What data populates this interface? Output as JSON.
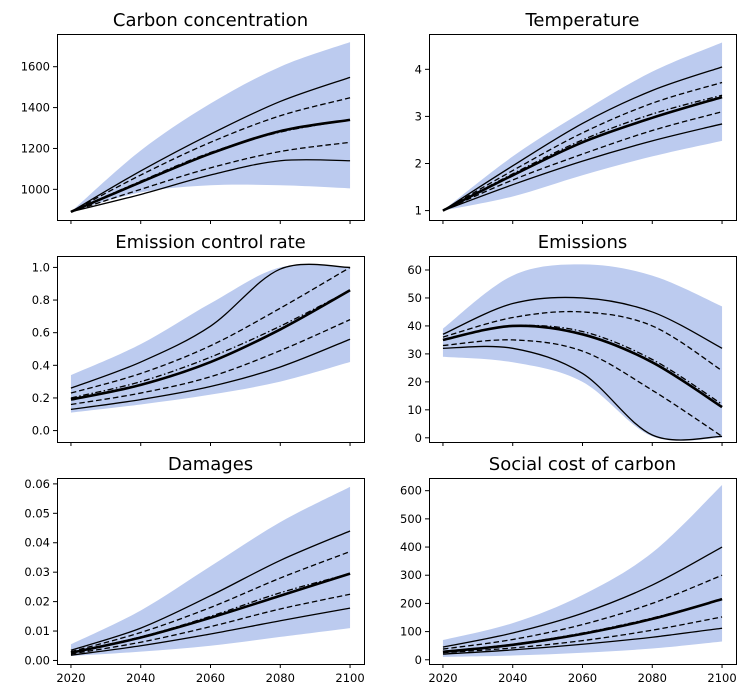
{
  "chart_data": [
    {
      "type": "line",
      "title": "Carbon concentration",
      "x": [
        2020,
        2040,
        2060,
        2080,
        2100
      ],
      "xticks": [
        2020,
        2040,
        2060,
        2080,
        2100
      ],
      "show_xticklabels": false,
      "ylim": [
        850,
        1760
      ],
      "yticks": [
        1000,
        1200,
        1400,
        1600
      ],
      "ytick_labels": [
        "1000",
        "1200",
        "1400",
        "1600"
      ],
      "band": {
        "lower": [
          890,
          985,
          1020,
          1020,
          1005
        ],
        "upper": [
          890,
          1190,
          1420,
          1600,
          1720
        ]
      },
      "series": [
        {
          "style": "solid",
          "width": 1.3,
          "values": [
            890,
            1090,
            1270,
            1430,
            1548
          ]
        },
        {
          "style": "dashed",
          "width": 1.3,
          "values": [
            890,
            1070,
            1230,
            1360,
            1448
          ]
        },
        {
          "style": "dashdot",
          "width": 1.3,
          "values": [
            890,
            1040,
            1180,
            1280,
            1340
          ]
        },
        {
          "style": "solid",
          "width": 2.6,
          "values": [
            890,
            1035,
            1175,
            1285,
            1340
          ]
        },
        {
          "style": "dashed",
          "width": 1.3,
          "values": [
            890,
            1000,
            1105,
            1185,
            1230
          ]
        },
        {
          "style": "solid",
          "width": 1.3,
          "values": [
            890,
            975,
            1070,
            1140,
            1140
          ]
        }
      ]
    },
    {
      "type": "line",
      "title": "Temperature",
      "x": [
        2020,
        2040,
        2060,
        2080,
        2100
      ],
      "xticks": [
        2020,
        2040,
        2060,
        2080,
        2100
      ],
      "show_xticklabels": false,
      "ylim": [
        0.8,
        4.75
      ],
      "yticks": [
        1,
        2,
        3,
        4
      ],
      "ytick_labels": [
        "1",
        "2",
        "3",
        "4"
      ],
      "band": {
        "lower": [
          1.0,
          1.3,
          1.75,
          2.15,
          2.48
        ],
        "upper": [
          1.0,
          2.15,
          3.1,
          3.95,
          4.57
        ]
      },
      "series": [
        {
          "style": "solid",
          "width": 1.3,
          "values": [
            1.0,
            1.95,
            2.85,
            3.55,
            4.05
          ]
        },
        {
          "style": "dashed",
          "width": 1.3,
          "values": [
            1.0,
            1.85,
            2.65,
            3.28,
            3.72
          ]
        },
        {
          "style": "dashdot",
          "width": 1.3,
          "values": [
            1.0,
            1.78,
            2.5,
            3.05,
            3.45
          ]
        },
        {
          "style": "solid",
          "width": 2.6,
          "values": [
            1.0,
            1.75,
            2.45,
            2.97,
            3.41
          ]
        },
        {
          "style": "dashed",
          "width": 1.3,
          "values": [
            1.0,
            1.65,
            2.2,
            2.7,
            3.1
          ]
        },
        {
          "style": "solid",
          "width": 1.3,
          "values": [
            1.0,
            1.55,
            2.05,
            2.48,
            2.84
          ]
        }
      ]
    },
    {
      "type": "line",
      "title": "Emission control rate",
      "x": [
        2020,
        2040,
        2060,
        2080,
        2100
      ],
      "xticks": [
        2020,
        2040,
        2060,
        2080,
        2100
      ],
      "show_xticklabels": false,
      "ylim": [
        -0.07,
        1.07
      ],
      "yticks": [
        0.0,
        0.2,
        0.4,
        0.6,
        0.8,
        1.0
      ],
      "ytick_labels": [
        "0.0",
        "0.2",
        "0.4",
        "0.6",
        "0.8",
        "1.0"
      ],
      "band": {
        "lower": [
          0.11,
          0.16,
          0.22,
          0.3,
          0.42
        ],
        "upper": [
          0.34,
          0.53,
          0.78,
          1.0,
          1.0
        ]
      },
      "series": [
        {
          "style": "solid",
          "width": 1.3,
          "values": [
            0.26,
            0.42,
            0.64,
            0.99,
            1.0
          ]
        },
        {
          "style": "dashed",
          "width": 1.3,
          "values": [
            0.23,
            0.35,
            0.52,
            0.75,
            1.0
          ]
        },
        {
          "style": "dashdot",
          "width": 1.3,
          "values": [
            0.2,
            0.3,
            0.45,
            0.64,
            0.86
          ]
        },
        {
          "style": "solid",
          "width": 2.6,
          "values": [
            0.19,
            0.28,
            0.42,
            0.62,
            0.86
          ]
        },
        {
          "style": "dashed",
          "width": 1.3,
          "values": [
            0.16,
            0.23,
            0.33,
            0.49,
            0.68
          ]
        },
        {
          "style": "solid",
          "width": 1.3,
          "values": [
            0.13,
            0.19,
            0.27,
            0.39,
            0.56
          ]
        }
      ]
    },
    {
      "type": "line",
      "title": "Emissions",
      "x": [
        2020,
        2040,
        2060,
        2080,
        2100
      ],
      "xticks": [
        2020,
        2040,
        2060,
        2080,
        2100
      ],
      "show_xticklabels": false,
      "ylim": [
        -1.5,
        65
      ],
      "yticks": [
        0,
        10,
        20,
        30,
        40,
        50,
        60
      ],
      "ytick_labels": [
        "0",
        "10",
        "20",
        "30",
        "40",
        "50",
        "60"
      ],
      "band": {
        "lower": [
          29,
          27,
          20,
          0.5,
          0
        ],
        "upper": [
          39,
          58,
          62,
          58,
          47
        ]
      },
      "series": [
        {
          "style": "solid",
          "width": 1.3,
          "values": [
            37,
            48,
            50,
            45,
            32
          ]
        },
        {
          "style": "dashed",
          "width": 1.3,
          "values": [
            36,
            43,
            45,
            40,
            24
          ]
        },
        {
          "style": "dashdot",
          "width": 1.3,
          "values": [
            35,
            40,
            38,
            28,
            12
          ]
        },
        {
          "style": "solid",
          "width": 2.6,
          "values": [
            35,
            40,
            37,
            27,
            11
          ]
        },
        {
          "style": "dashed",
          "width": 1.3,
          "values": [
            33,
            35,
            31,
            17,
            0.5
          ]
        },
        {
          "style": "solid",
          "width": 1.3,
          "values": [
            32,
            32,
            23,
            1,
            0.5
          ]
        }
      ]
    },
    {
      "type": "line",
      "title": "Damages",
      "x": [
        2020,
        2040,
        2060,
        2080,
        2100
      ],
      "xticks": [
        2020,
        2040,
        2060,
        2080,
        2100
      ],
      "xtick_labels": [
        "2020",
        "2040",
        "2060",
        "2080",
        "2100"
      ],
      "show_xticklabels": true,
      "ylim": [
        -0.0012,
        0.062
      ],
      "yticks": [
        0.0,
        0.01,
        0.02,
        0.03,
        0.04,
        0.05,
        0.06
      ],
      "ytick_labels": [
        "0.00",
        "0.01",
        "0.02",
        "0.03",
        "0.04",
        "0.05",
        "0.06"
      ],
      "band": {
        "lower": [
          0.0015,
          0.003,
          0.005,
          0.008,
          0.011
        ],
        "upper": [
          0.0055,
          0.017,
          0.032,
          0.047,
          0.059
        ]
      },
      "series": [
        {
          "style": "solid",
          "width": 1.3,
          "values": [
            0.0035,
            0.011,
            0.022,
            0.034,
            0.044
          ]
        },
        {
          "style": "dashed",
          "width": 1.3,
          "values": [
            0.003,
            0.0095,
            0.018,
            0.028,
            0.037
          ]
        },
        {
          "style": "dashdot",
          "width": 1.3,
          "values": [
            0.0028,
            0.008,
            0.015,
            0.023,
            0.0295
          ]
        },
        {
          "style": "solid",
          "width": 2.6,
          "values": [
            0.0026,
            0.0078,
            0.0145,
            0.022,
            0.0295
          ]
        },
        {
          "style": "dashed",
          "width": 1.3,
          "values": [
            0.0022,
            0.0062,
            0.0115,
            0.0175,
            0.0225
          ]
        },
        {
          "style": "solid",
          "width": 1.3,
          "values": [
            0.0018,
            0.005,
            0.009,
            0.0135,
            0.0178
          ]
        }
      ]
    },
    {
      "type": "line",
      "title": "Social cost of carbon",
      "x": [
        2020,
        2040,
        2060,
        2080,
        2100
      ],
      "xticks": [
        2020,
        2040,
        2060,
        2080,
        2100
      ],
      "xtick_labels": [
        "2020",
        "2040",
        "2060",
        "2080",
        "2100"
      ],
      "show_xticklabels": true,
      "ylim": [
        -15,
        645
      ],
      "yticks": [
        0,
        100,
        200,
        300,
        400,
        500,
        600
      ],
      "ytick_labels": [
        "0",
        "100",
        "200",
        "300",
        "400",
        "500",
        "600"
      ],
      "band": {
        "lower": [
          10,
          15,
          25,
          40,
          65
        ],
        "upper": [
          70,
          130,
          230,
          380,
          620
        ]
      },
      "series": [
        {
          "style": "solid",
          "width": 1.3,
          "values": [
            45,
            95,
            165,
            265,
            400
          ]
        },
        {
          "style": "dashed",
          "width": 1.3,
          "values": [
            38,
            72,
            125,
            200,
            300
          ]
        },
        {
          "style": "dashdot",
          "width": 1.3,
          "values": [
            30,
            55,
            95,
            148,
            215
          ]
        },
        {
          "style": "solid",
          "width": 2.6,
          "values": [
            28,
            53,
            92,
            145,
            215
          ]
        },
        {
          "style": "dashed",
          "width": 1.3,
          "values": [
            25,
            42,
            68,
            105,
            152
          ]
        },
        {
          "style": "solid",
          "width": 1.3,
          "values": [
            20,
            35,
            55,
            80,
            112
          ]
        }
      ]
    }
  ]
}
